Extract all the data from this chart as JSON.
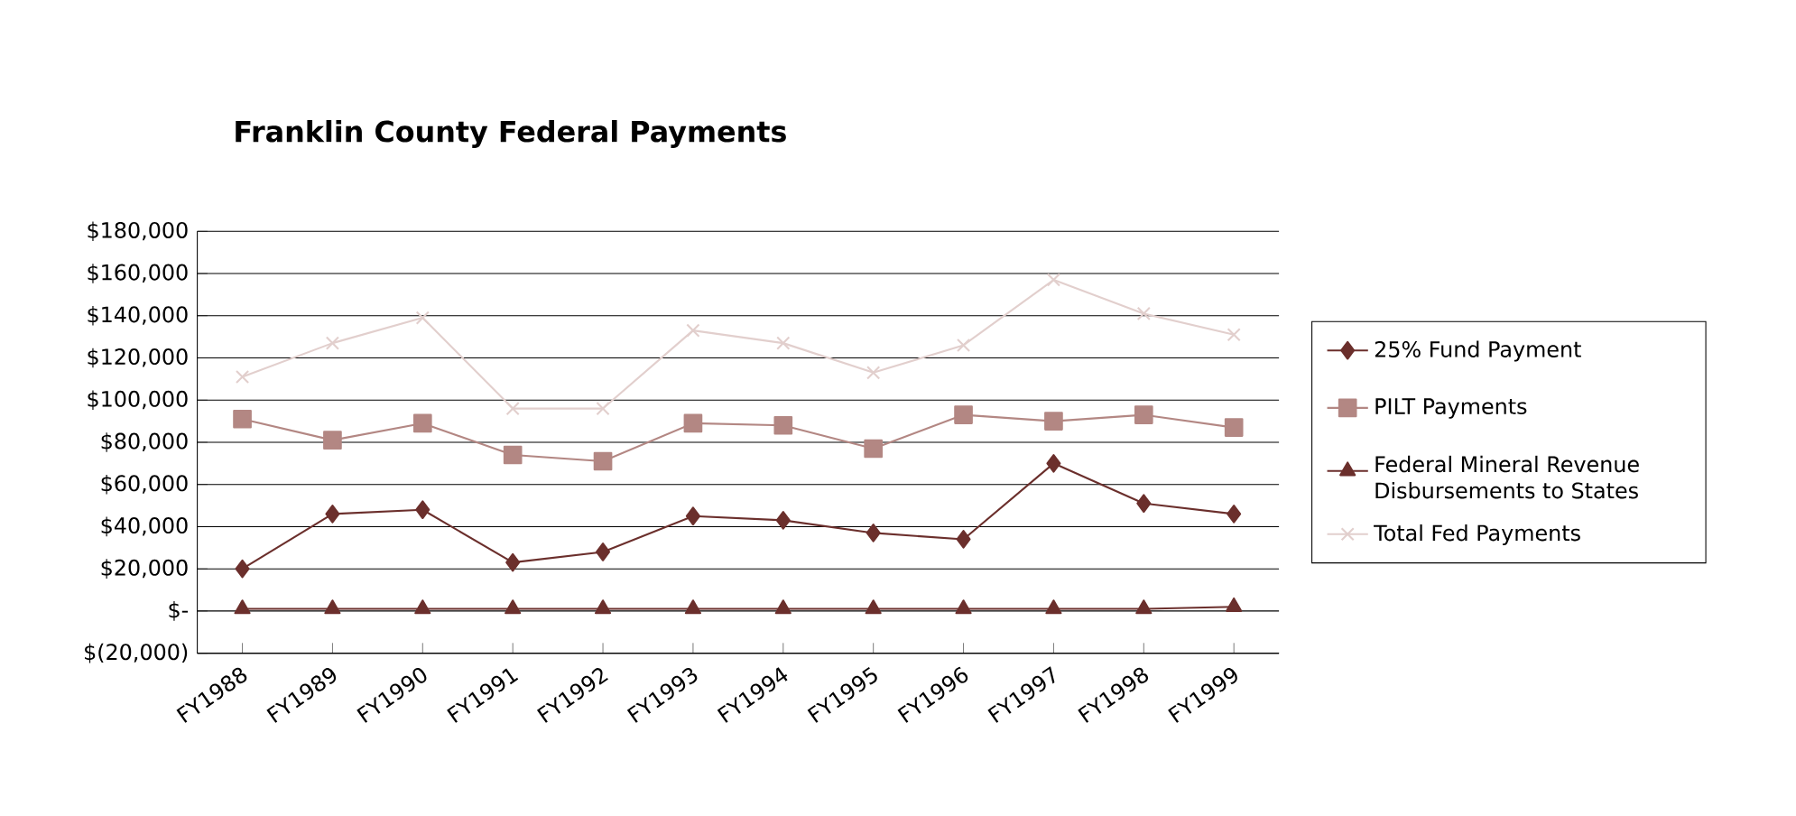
{
  "chart_data": {
    "type": "line",
    "title": "Franklin County Federal Payments",
    "categories": [
      "FY1988",
      "FY1989",
      "FY1990",
      "FY1991",
      "FY1992",
      "FY1993",
      "FY1994",
      "FY1995",
      "FY1996",
      "FY1997",
      "FY1998",
      "FY1999"
    ],
    "series": [
      {
        "name": "25% Fund Payment",
        "color": "#6b2f2c",
        "marker": "diamond",
        "values": [
          20000,
          46000,
          48000,
          23000,
          28000,
          45000,
          43000,
          37000,
          34000,
          70000,
          51000,
          46000
        ]
      },
      {
        "name": "PILT Payments",
        "color": "#b38783",
        "marker": "square",
        "values": [
          91000,
          81000,
          89000,
          74000,
          71000,
          89000,
          88000,
          77000,
          93000,
          90000,
          93000,
          87000
        ]
      },
      {
        "name": "Federal Mineral Revenue Disbursements to States",
        "color": "#6b2f2c",
        "marker": "triangle",
        "values": [
          1000,
          1000,
          1000,
          1000,
          1000,
          1000,
          1000,
          1000,
          1000,
          1000,
          1000,
          2000
        ]
      },
      {
        "name": "Total Fed Payments",
        "color": "#e2cfcd",
        "marker": "cross",
        "values": [
          111000,
          127000,
          139000,
          96000,
          96000,
          133000,
          127000,
          113000,
          126000,
          157000,
          141000,
          131000
        ]
      }
    ],
    "ylim": [
      -20000,
      180000
    ],
    "yticks": [
      {
        "value": -20000,
        "label": "$(20,000)"
      },
      {
        "value": 0,
        "label": "$-"
      },
      {
        "value": 20000,
        "label": "$20,000"
      },
      {
        "value": 40000,
        "label": "$40,000"
      },
      {
        "value": 60000,
        "label": "$60,000"
      },
      {
        "value": 80000,
        "label": "$80,000"
      },
      {
        "value": 100000,
        "label": "$100,000"
      },
      {
        "value": 120000,
        "label": "$120,000"
      },
      {
        "value": 140000,
        "label": "$140,000"
      },
      {
        "value": 160000,
        "label": "$160,000"
      },
      {
        "value": 180000,
        "label": "$180,000"
      }
    ],
    "grid": "y",
    "legend": "right"
  }
}
